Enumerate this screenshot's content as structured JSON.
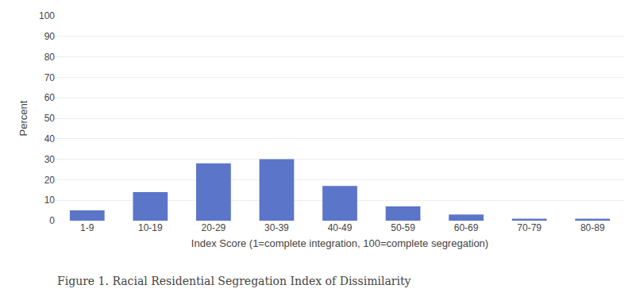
{
  "chart_data": {
    "type": "bar",
    "categories": [
      "1-9",
      "10-19",
      "20-29",
      "30-39",
      "40-49",
      "50-59",
      "60-69",
      "70-79",
      "80-89"
    ],
    "values": [
      5,
      14,
      28,
      30,
      17,
      7,
      3,
      1,
      1
    ],
    "color": "#5b76c8",
    "xlabel": "Index Score (1=complete integration, 100=complete segregation)",
    "ylabel": "Percent",
    "ylim": [
      0,
      100
    ],
    "yticks": [
      0,
      10,
      20,
      30,
      40,
      50,
      60,
      70,
      80,
      90,
      100
    ],
    "grid": true,
    "annotations": [
      "Figure 1. Racial Residential Segregation Index of Dissimilarity"
    ]
  }
}
